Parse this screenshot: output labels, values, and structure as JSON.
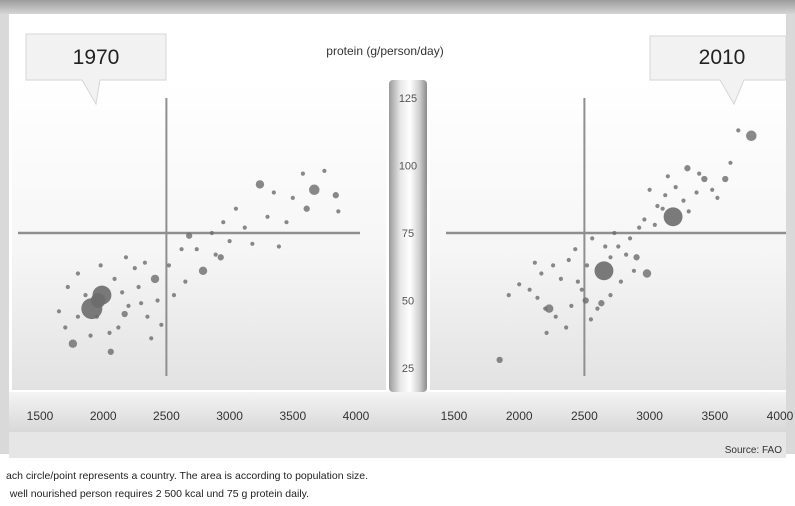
{
  "axis_title": "protein (g/person/day)",
  "source": "Source: FAO",
  "notes": [
    "ach circle/point represents a country. The area is according to population size.",
    "  well nourished person requires 2 500 kcal und 75 g protein daily."
  ],
  "colors": {
    "point": "#6b6b6b",
    "reference_line": "#8f8f8f",
    "axis_bar": "#cfcfcf"
  },
  "chart_data": [
    {
      "type": "scatter",
      "title": "1970",
      "xlabel": "",
      "ylabel": "protein (g/person/day)",
      "xlim": [
        1500,
        4000
      ],
      "ylim": [
        25,
        125
      ],
      "x_ticks": [
        "1500",
        "2000",
        "2500",
        "3000",
        "3500",
        "4000"
      ],
      "reference_lines": {
        "x": 2500,
        "y": 75
      },
      "points": [
        {
          "x": 1910,
          "y": 47,
          "size": 10
        },
        {
          "x": 1990,
          "y": 52,
          "size": 9
        },
        {
          "x": 1960,
          "y": 50,
          "size": 7
        },
        {
          "x": 1760,
          "y": 34,
          "size": 4
        },
        {
          "x": 2060,
          "y": 31,
          "size": 3
        },
        {
          "x": 2410,
          "y": 58,
          "size": 4
        },
        {
          "x": 2170,
          "y": 45,
          "size": 3
        },
        {
          "x": 2680,
          "y": 74,
          "size": 3
        },
        {
          "x": 2790,
          "y": 61,
          "size": 4
        },
        {
          "x": 3240,
          "y": 93,
          "size": 4
        },
        {
          "x": 3670,
          "y": 91,
          "size": 5
        },
        {
          "x": 3840,
          "y": 89,
          "size": 3
        },
        {
          "x": 3610,
          "y": 84,
          "size": 3
        },
        {
          "x": 2930,
          "y": 66,
          "size": 3
        },
        {
          "x": 2620,
          "y": 69,
          "size": 2
        },
        {
          "x": 1700,
          "y": 40,
          "size": 2
        },
        {
          "x": 1800,
          "y": 44,
          "size": 2
        },
        {
          "x": 1860,
          "y": 52,
          "size": 2
        },
        {
          "x": 1650,
          "y": 46,
          "size": 2
        },
        {
          "x": 2050,
          "y": 38,
          "size": 2
        },
        {
          "x": 2120,
          "y": 40,
          "size": 2
        },
        {
          "x": 2200,
          "y": 48,
          "size": 2
        },
        {
          "x": 2280,
          "y": 55,
          "size": 2
        },
        {
          "x": 2350,
          "y": 44,
          "size": 2
        },
        {
          "x": 2430,
          "y": 50,
          "size": 2
        },
        {
          "x": 2250,
          "y": 62,
          "size": 2
        },
        {
          "x": 2090,
          "y": 58,
          "size": 2
        },
        {
          "x": 1980,
          "y": 63,
          "size": 2
        },
        {
          "x": 1720,
          "y": 55,
          "size": 2
        },
        {
          "x": 1800,
          "y": 60,
          "size": 2
        },
        {
          "x": 2180,
          "y": 66,
          "size": 2
        },
        {
          "x": 2330,
          "y": 64,
          "size": 2
        },
        {
          "x": 2460,
          "y": 41,
          "size": 2
        },
        {
          "x": 1900,
          "y": 37,
          "size": 2
        },
        {
          "x": 2150,
          "y": 53,
          "size": 2
        },
        {
          "x": 2560,
          "y": 52,
          "size": 2
        },
        {
          "x": 2520,
          "y": 63,
          "size": 2
        },
        {
          "x": 2740,
          "y": 69,
          "size": 2
        },
        {
          "x": 2860,
          "y": 75,
          "size": 2
        },
        {
          "x": 2950,
          "y": 79,
          "size": 2
        },
        {
          "x": 3050,
          "y": 84,
          "size": 2
        },
        {
          "x": 3120,
          "y": 77,
          "size": 2
        },
        {
          "x": 3300,
          "y": 81,
          "size": 2
        },
        {
          "x": 3390,
          "y": 70,
          "size": 2
        },
        {
          "x": 3180,
          "y": 71,
          "size": 2
        },
        {
          "x": 3500,
          "y": 88,
          "size": 2
        },
        {
          "x": 3580,
          "y": 97,
          "size": 2
        },
        {
          "x": 3750,
          "y": 98,
          "size": 2
        },
        {
          "x": 3860,
          "y": 83,
          "size": 2
        },
        {
          "x": 3450,
          "y": 79,
          "size": 2
        },
        {
          "x": 2650,
          "y": 57,
          "size": 2
        },
        {
          "x": 2890,
          "y": 67,
          "size": 2
        },
        {
          "x": 3000,
          "y": 72,
          "size": 2
        },
        {
          "x": 3350,
          "y": 90,
          "size": 2
        },
        {
          "x": 2380,
          "y": 36,
          "size": 2
        },
        {
          "x": 2300,
          "y": 49,
          "size": 2
        },
        {
          "x": 1950,
          "y": 44,
          "size": 2
        }
      ]
    },
    {
      "type": "scatter",
      "title": "2010",
      "xlabel": "",
      "ylabel": "protein (g/person/day)",
      "xlim": [
        1500,
        4000
      ],
      "ylim": [
        25,
        125
      ],
      "x_ticks": [
        "1500",
        "2000",
        "2500",
        "3000",
        "3500",
        "4000"
      ],
      "reference_lines": {
        "x": 2500,
        "y": 75
      },
      "points": [
        {
          "x": 2650,
          "y": 61,
          "size": 9
        },
        {
          "x": 3180,
          "y": 81,
          "size": 9
        },
        {
          "x": 3780,
          "y": 111,
          "size": 5
        },
        {
          "x": 2980,
          "y": 60,
          "size": 4
        },
        {
          "x": 2230,
          "y": 47,
          "size": 4
        },
        {
          "x": 2510,
          "y": 50,
          "size": 3
        },
        {
          "x": 2630,
          "y": 49,
          "size": 3
        },
        {
          "x": 1850,
          "y": 28,
          "size": 3
        },
        {
          "x": 2900,
          "y": 66,
          "size": 3
        },
        {
          "x": 3420,
          "y": 95,
          "size": 3
        },
        {
          "x": 3580,
          "y": 95,
          "size": 3
        },
        {
          "x": 3290,
          "y": 99,
          "size": 3
        },
        {
          "x": 2000,
          "y": 56,
          "size": 2
        },
        {
          "x": 2080,
          "y": 54,
          "size": 2
        },
        {
          "x": 2140,
          "y": 51,
          "size": 2
        },
        {
          "x": 2170,
          "y": 60,
          "size": 2
        },
        {
          "x": 2200,
          "y": 47,
          "size": 2
        },
        {
          "x": 2260,
          "y": 63,
          "size": 2
        },
        {
          "x": 2320,
          "y": 58,
          "size": 2
        },
        {
          "x": 2380,
          "y": 65,
          "size": 2
        },
        {
          "x": 2430,
          "y": 69,
          "size": 2
        },
        {
          "x": 2480,
          "y": 54,
          "size": 2
        },
        {
          "x": 2550,
          "y": 43,
          "size": 2
        },
        {
          "x": 2700,
          "y": 66,
          "size": 2
        },
        {
          "x": 2760,
          "y": 70,
          "size": 2
        },
        {
          "x": 2820,
          "y": 67,
          "size": 2
        },
        {
          "x": 2850,
          "y": 73,
          "size": 2
        },
        {
          "x": 2920,
          "y": 77,
          "size": 2
        },
        {
          "x": 2960,
          "y": 80,
          "size": 2
        },
        {
          "x": 3040,
          "y": 78,
          "size": 2
        },
        {
          "x": 3060,
          "y": 85,
          "size": 2
        },
        {
          "x": 3120,
          "y": 89,
          "size": 2
        },
        {
          "x": 3200,
          "y": 92,
          "size": 2
        },
        {
          "x": 3260,
          "y": 87,
          "size": 2
        },
        {
          "x": 3300,
          "y": 83,
          "size": 2
        },
        {
          "x": 3360,
          "y": 90,
          "size": 2
        },
        {
          "x": 3480,
          "y": 91,
          "size": 2
        },
        {
          "x": 3520,
          "y": 88,
          "size": 2
        },
        {
          "x": 3620,
          "y": 101,
          "size": 2
        },
        {
          "x": 3680,
          "y": 113,
          "size": 2
        },
        {
          "x": 3140,
          "y": 96,
          "size": 2
        },
        {
          "x": 3000,
          "y": 91,
          "size": 2
        },
        {
          "x": 2700,
          "y": 52,
          "size": 2
        },
        {
          "x": 2780,
          "y": 57,
          "size": 2
        },
        {
          "x": 2600,
          "y": 47,
          "size": 2
        },
        {
          "x": 2360,
          "y": 40,
          "size": 2
        },
        {
          "x": 2280,
          "y": 44,
          "size": 2
        },
        {
          "x": 2120,
          "y": 64,
          "size": 2
        },
        {
          "x": 1920,
          "y": 52,
          "size": 2
        },
        {
          "x": 2450,
          "y": 57,
          "size": 2
        },
        {
          "x": 2560,
          "y": 73,
          "size": 2
        },
        {
          "x": 2730,
          "y": 75,
          "size": 2
        },
        {
          "x": 2660,
          "y": 70,
          "size": 2
        },
        {
          "x": 2880,
          "y": 61,
          "size": 2
        },
        {
          "x": 3380,
          "y": 97,
          "size": 2
        },
        {
          "x": 3100,
          "y": 84,
          "size": 2
        },
        {
          "x": 2210,
          "y": 38,
          "size": 2
        },
        {
          "x": 2520,
          "y": 63,
          "size": 2
        },
        {
          "x": 2400,
          "y": 48,
          "size": 2
        }
      ]
    }
  ],
  "center_axis": {
    "type": "y-axis",
    "ticks": [
      {
        "value": 125,
        "label": "125"
      },
      {
        "value": 100,
        "label": "100"
      },
      {
        "value": 75,
        "label": "75"
      },
      {
        "value": 50,
        "label": "50"
      },
      {
        "value": 25,
        "label": "25"
      }
    ]
  }
}
